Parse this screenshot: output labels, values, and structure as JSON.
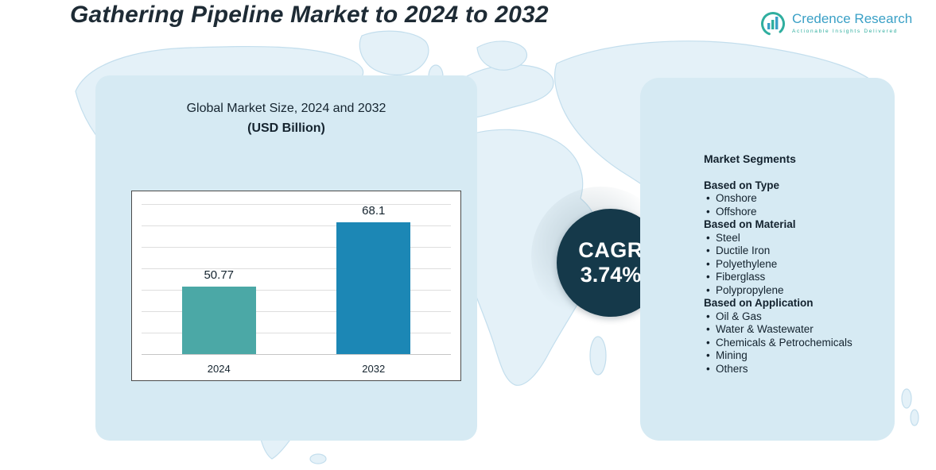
{
  "header": {
    "title": "Gathering Pipeline Market to 2024 to 2032"
  },
  "brand": {
    "name": "Credence Research",
    "tagline": "Actionable Insights Delivered"
  },
  "chart_data": {
    "type": "bar",
    "title": "Global Market Size, 2024 and 2032",
    "subtitle": "(USD Billion)",
    "categories": [
      "2024",
      "2032"
    ],
    "values": [
      50.77,
      68.1
    ],
    "unit": "USD Billion",
    "bar_colors": [
      "#4BA8A6",
      "#1C87B5"
    ],
    "ylim": [
      35,
      70
    ],
    "grid": true,
    "legend": false
  },
  "cagr": {
    "label": "CAGR",
    "value": "3.74%"
  },
  "segments": {
    "title": "Market Segments",
    "groups": [
      {
        "heading": "Based on Type",
        "items": [
          "Onshore",
          "Offshore"
        ]
      },
      {
        "heading": "Based on Material",
        "items": [
          "Steel",
          "Ductile Iron",
          "Polyethylene",
          "Fiberglass",
          "Polypropylene"
        ]
      },
      {
        "heading": "Based on Application",
        "items": [
          "Oil & Gas",
          "Water & Wastewater",
          "Chemicals & Petrochemicals",
          "Mining",
          "Others"
        ]
      }
    ]
  }
}
